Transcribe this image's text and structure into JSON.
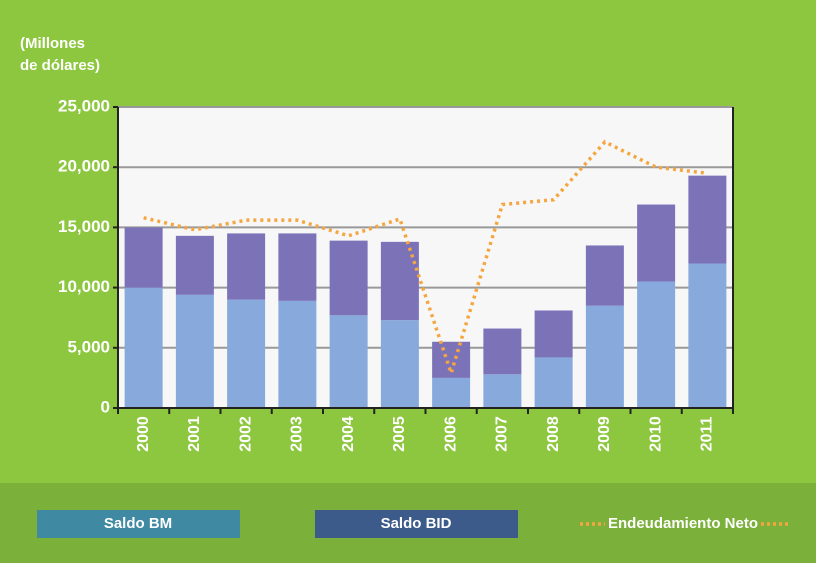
{
  "chart_data": {
    "type": "bar",
    "y_label": [
      "(Millones",
      "de dólares)"
    ],
    "categories": [
      "2000",
      "2001",
      "2002",
      "2003",
      "2004",
      "2005",
      "2006",
      "2007",
      "2008",
      "2009",
      "2010",
      "2011"
    ],
    "series": [
      {
        "name": "Saldo BM",
        "color": "#88a9dc",
        "legend_color": "#3f8aa2",
        "values": [
          10000,
          9400,
          9000,
          8900,
          7700,
          7300,
          2500,
          2800,
          4200,
          8500,
          10500,
          12000
        ]
      },
      {
        "name": "Saldo BID",
        "color": "#7b72b8",
        "legend_color": "#3d5b8a",
        "values": [
          5000,
          4900,
          5500,
          5600,
          6200,
          6500,
          3000,
          3800,
          3900,
          5000,
          6400,
          7300
        ]
      },
      {
        "name": "Endeudamiento Neto",
        "type": "line",
        "color": "#f5a640",
        "values": [
          15800,
          14800,
          15600,
          15600,
          14300,
          15700,
          2900,
          16900,
          17300,
          22100,
          20000,
          19500
        ]
      }
    ],
    "ylim": [
      0,
      25000
    ],
    "yticks": [
      0,
      {
        "value": 5000,
        "label": "5,000"
      },
      {
        "value": 10000,
        "label": "10,000"
      },
      {
        "value": 15000,
        "label": "15,000"
      },
      {
        "value": 20000,
        "label": "20,000"
      },
      {
        "value": 25000,
        "label": "25,000"
      }
    ],
    "grid": true
  }
}
